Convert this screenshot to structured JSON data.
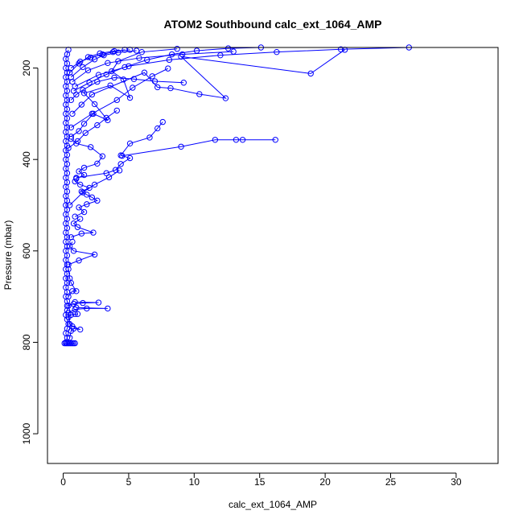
{
  "chart_data": {
    "type": "scatter",
    "title": "ATOM2 Southbound calc_ext_1064_AMP",
    "xlabel": "calc_ext_1064_AMP",
    "ylabel": "Pressure (mbar)",
    "xlim": [
      -1.2,
      33.2
    ],
    "ylim": [
      1065,
      155
    ],
    "y_reversed": true,
    "xticks": [
      0,
      5,
      10,
      15,
      20,
      25,
      30
    ],
    "yticks": [
      200,
      400,
      600,
      800,
      1000
    ],
    "grid": false,
    "legend": "none",
    "colors": {
      "series": "#0000ff",
      "frame": "#000000"
    },
    "series": [
      {
        "points": [
          [
            0.3,
            802
          ],
          [
            0.4,
            802
          ],
          [
            0.5,
            802
          ],
          [
            0.6,
            802
          ],
          [
            0.7,
            802
          ],
          [
            0.8,
            802
          ],
          [
            0.9,
            802
          ],
          [
            0.2,
            802
          ],
          [
            0.1,
            802
          ]
        ]
      },
      {
        "points": [
          [
            0.2,
            800
          ],
          [
            0.3,
            790
          ],
          [
            0.2,
            780
          ],
          [
            0.3,
            770
          ],
          [
            0.4,
            760
          ],
          [
            0.3,
            750
          ],
          [
            0.2,
            740
          ],
          [
            0.3,
            730
          ],
          [
            0.4,
            720
          ],
          [
            0.3,
            710
          ],
          [
            0.2,
            700
          ],
          [
            0.3,
            690
          ],
          [
            0.2,
            680
          ],
          [
            0.3,
            670
          ],
          [
            0.2,
            660
          ],
          [
            0.3,
            650
          ],
          [
            0.2,
            640
          ],
          [
            0.3,
            630
          ],
          [
            0.2,
            620
          ],
          [
            0.3,
            610
          ],
          [
            0.2,
            600
          ],
          [
            0.3,
            590
          ],
          [
            0.2,
            580
          ],
          [
            0.3,
            570
          ],
          [
            0.2,
            560
          ],
          [
            0.3,
            550
          ],
          [
            0.2,
            540
          ],
          [
            0.3,
            530
          ],
          [
            0.2,
            520
          ],
          [
            0.3,
            510
          ],
          [
            0.2,
            500
          ],
          [
            0.3,
            490
          ],
          [
            0.2,
            480
          ],
          [
            0.3,
            470
          ],
          [
            0.2,
            460
          ],
          [
            0.3,
            450
          ],
          [
            0.2,
            440
          ],
          [
            0.3,
            430
          ],
          [
            0.2,
            420
          ],
          [
            0.3,
            410
          ],
          [
            0.2,
            400
          ],
          [
            0.3,
            390
          ],
          [
            0.2,
            380
          ],
          [
            0.3,
            370
          ],
          [
            0.2,
            360
          ],
          [
            0.3,
            350
          ],
          [
            0.2,
            340
          ],
          [
            0.3,
            330
          ],
          [
            0.2,
            320
          ],
          [
            0.3,
            310
          ],
          [
            0.2,
            300
          ],
          [
            0.3,
            290
          ],
          [
            0.2,
            280
          ],
          [
            0.3,
            270
          ],
          [
            0.2,
            260
          ],
          [
            0.3,
            250
          ],
          [
            0.2,
            240
          ],
          [
            0.3,
            230
          ],
          [
            0.2,
            220
          ],
          [
            0.3,
            210
          ],
          [
            0.2,
            200
          ],
          [
            0.3,
            190
          ],
          [
            0.2,
            180
          ],
          [
            0.3,
            170
          ],
          [
            0.4,
            160
          ]
        ]
      },
      {
        "points": [
          [
            0.5,
            790
          ],
          [
            0.6,
            775
          ],
          [
            0.8,
            770
          ],
          [
            1.3,
            772
          ],
          [
            0.7,
            765
          ],
          [
            0.5,
            760
          ],
          [
            0.4,
            745
          ],
          [
            0.6,
            740
          ],
          [
            1.1,
            738
          ],
          [
            0.9,
            738
          ]
        ]
      },
      {
        "points": [
          [
            0.4,
            735
          ],
          [
            0.9,
            728
          ],
          [
            1.8,
            726
          ],
          [
            3.4,
            726
          ],
          [
            1.0,
            724
          ]
        ]
      },
      {
        "points": [
          [
            0.3,
            720
          ],
          [
            0.8,
            716
          ],
          [
            1.5,
            714
          ],
          [
            2.7,
            713
          ],
          [
            0.9,
            712
          ]
        ]
      },
      {
        "points": [
          [
            0.4,
            700
          ],
          [
            0.7,
            688
          ],
          [
            1.0,
            688
          ],
          [
            0.6,
            670
          ],
          [
            0.5,
            660
          ],
          [
            0.4,
            640
          ]
        ]
      },
      {
        "points": [
          [
            0.4,
            630
          ],
          [
            1.2,
            621
          ],
          [
            2.4,
            608
          ],
          [
            0.8,
            600
          ],
          [
            0.5,
            590
          ],
          [
            0.7,
            580
          ]
        ]
      },
      {
        "points": [
          [
            0.6,
            570
          ],
          [
            1.4,
            562
          ],
          [
            2.3,
            560
          ],
          [
            1.1,
            548
          ],
          [
            0.8,
            540
          ],
          [
            1.3,
            530
          ]
        ]
      },
      {
        "points": [
          [
            0.9,
            525
          ],
          [
            1.6,
            515
          ],
          [
            1.2,
            505
          ],
          [
            1.8,
            498
          ],
          [
            2.6,
            490
          ],
          [
            2.2,
            483
          ],
          [
            1.8,
            477
          ],
          [
            1.4,
            470
          ],
          [
            2.0,
            462
          ],
          [
            1.3,
            455
          ],
          [
            0.9,
            448
          ]
        ]
      },
      {
        "points": [
          [
            1.0,
            442
          ],
          [
            1.6,
            434
          ],
          [
            1.2,
            426
          ],
          [
            1.6,
            418
          ],
          [
            2.6,
            409
          ],
          [
            3.0,
            393
          ],
          [
            2.1,
            373
          ],
          [
            1.0,
            365
          ],
          [
            0.6,
            355
          ]
        ]
      },
      {
        "points": [
          [
            1.0,
            440
          ],
          [
            3.3,
            430
          ],
          [
            4.0,
            423
          ],
          [
            4.4,
            410
          ],
          [
            5.1,
            397
          ],
          [
            4.4,
            391
          ],
          [
            5.1,
            365
          ],
          [
            6.6,
            352
          ],
          [
            7.2,
            332
          ],
          [
            7.6,
            318
          ]
        ]
      },
      {
        "points": [
          [
            4.5,
            392
          ],
          [
            9.0,
            372
          ],
          [
            11.6,
            357
          ],
          [
            13.2,
            357
          ],
          [
            13.7,
            357
          ],
          [
            16.2,
            357
          ]
        ]
      },
      {
        "points": [
          [
            0.6,
            350
          ],
          [
            1.2,
            338
          ],
          [
            1.6,
            322
          ],
          [
            2.3,
            300
          ],
          [
            3.4,
            314
          ],
          [
            2.4,
            279
          ],
          [
            1.6,
            255
          ],
          [
            3.6,
            238
          ],
          [
            5.1,
            265
          ],
          [
            4.6,
            225
          ],
          [
            3.7,
            207
          ],
          [
            4.2,
            185
          ],
          [
            6.0,
            165
          ],
          [
            8.7,
            158
          ]
        ]
      },
      {
        "points": [
          [
            0.7,
            300
          ],
          [
            1.4,
            280
          ],
          [
            2.2,
            258
          ],
          [
            6.2,
            210
          ],
          [
            7.2,
            242
          ],
          [
            8.2,
            244
          ],
          [
            10.4,
            257
          ],
          [
            12.4,
            266
          ],
          [
            9.0,
            175
          ],
          [
            18.9,
            212
          ],
          [
            21.5,
            160
          ]
        ]
      },
      {
        "points": [
          [
            0.6,
            270
          ],
          [
            1.0,
            258
          ],
          [
            1.5,
            248
          ],
          [
            2.6,
            230
          ],
          [
            3.9,
            221
          ],
          [
            5.4,
            224
          ],
          [
            7.0,
            229
          ],
          [
            9.2,
            232
          ]
        ]
      },
      {
        "points": [
          [
            0.8,
            250
          ],
          [
            2.0,
            232
          ],
          [
            3.3,
            214
          ],
          [
            4.7,
            198
          ],
          [
            6.4,
            182
          ],
          [
            8.3,
            170
          ],
          [
            10.2,
            162
          ],
          [
            12.6,
            157
          ],
          [
            15.1,
            155
          ]
        ]
      },
      {
        "points": [
          [
            0.9,
            240
          ],
          [
            2.7,
            215
          ],
          [
            5.0,
            196
          ],
          [
            8.1,
            182
          ],
          [
            12.0,
            172
          ],
          [
            16.3,
            165
          ],
          [
            21.2,
            159
          ],
          [
            26.4,
            155
          ]
        ]
      },
      {
        "points": [
          [
            0.7,
            230
          ],
          [
            1.9,
            205
          ],
          [
            3.4,
            189
          ],
          [
            5.8,
            178
          ],
          [
            9.1,
            170
          ],
          [
            13.0,
            164
          ]
        ]
      },
      {
        "points": [
          [
            0.6,
            220
          ],
          [
            1.5,
            198
          ],
          [
            2.4,
            181
          ],
          [
            3.1,
            172
          ],
          [
            4.2,
            166
          ],
          [
            5.6,
            162
          ]
        ]
      },
      {
        "points": [
          [
            0.5,
            210
          ],
          [
            1.2,
            190
          ],
          [
            1.9,
            176
          ],
          [
            2.8,
            168
          ],
          [
            3.9,
            163
          ],
          [
            5.1,
            160
          ]
        ]
      },
      {
        "points": [
          [
            0.6,
            330
          ],
          [
            2.2,
            300
          ],
          [
            4.1,
            270
          ],
          [
            5.3,
            243
          ],
          [
            6.8,
            218
          ],
          [
            8.0,
            201
          ]
        ]
      },
      {
        "points": [
          [
            0.4,
            375
          ],
          [
            1.1,
            360
          ],
          [
            1.7,
            342
          ],
          [
            2.6,
            325
          ],
          [
            3.3,
            309
          ],
          [
            4.1,
            293
          ]
        ]
      },
      {
        "points": [
          [
            0.5,
            500
          ],
          [
            1.5,
            472
          ],
          [
            2.4,
            455
          ],
          [
            3.5,
            439
          ],
          [
            4.3,
            424
          ]
        ]
      },
      {
        "points": [
          [
            0.6,
            200
          ],
          [
            1.3,
            186
          ],
          [
            2.1,
            177
          ],
          [
            3.0,
            170
          ],
          [
            3.8,
            165
          ],
          [
            4.7,
            160
          ]
        ]
      }
    ]
  }
}
